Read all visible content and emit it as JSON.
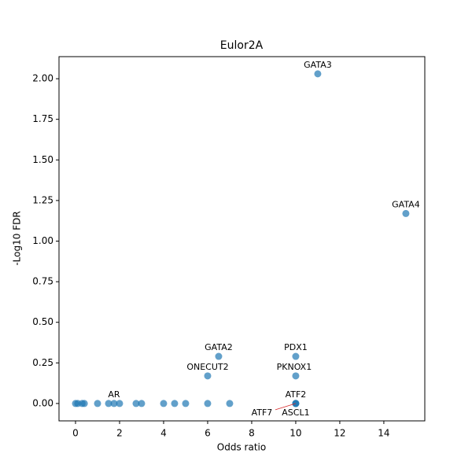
{
  "chart_data": {
    "type": "scatter",
    "title": "Eulor2A",
    "xlabel": "Odds ratio",
    "ylabel": "-Log10 FDR",
    "color": "#1f77b4",
    "x": [
      0,
      0.1,
      0.3,
      0.4,
      1,
      1.5,
      1.75,
      2,
      2.75,
      3,
      4,
      4.5,
      5,
      6,
      7,
      10,
      10,
      10,
      6,
      6.5,
      10,
      10,
      11,
      15
    ],
    "y": [
      0,
      0,
      0,
      0,
      0,
      0,
      0,
      0,
      0,
      0,
      0,
      0,
      0,
      0,
      0,
      0,
      0,
      0,
      0.17,
      0.29,
      0.29,
      0.17,
      2.03,
      1.17
    ],
    "labels": [
      null,
      null,
      null,
      null,
      null,
      null,
      "AR",
      null,
      null,
      null,
      null,
      null,
      null,
      null,
      null,
      "ATF2",
      "ATF7",
      "ASCL1",
      "ONECUT2",
      "GATA2",
      "PDX1",
      "PKNOX1",
      "GATA3",
      "GATA4"
    ],
    "xlim": [
      -0.75,
      15.86
    ],
    "ylim": [
      -0.107,
      2.136
    ],
    "xticks": [
      0,
      2,
      4,
      6,
      8,
      10,
      12,
      14
    ],
    "yticks": [
      {
        "value": 0,
        "label": "0.00"
      },
      {
        "value": 0.25,
        "label": "0.25"
      },
      {
        "value": 0.5,
        "label": "0.50"
      },
      {
        "value": 0.75,
        "label": "0.75"
      },
      {
        "value": 1,
        "label": "1.00"
      },
      {
        "value": 1.25,
        "label": "1.25"
      },
      {
        "value": 1.5,
        "label": "1.50"
      },
      {
        "value": 1.75,
        "label": "1.75"
      },
      {
        "value": 2,
        "label": "2.00"
      }
    ]
  }
}
